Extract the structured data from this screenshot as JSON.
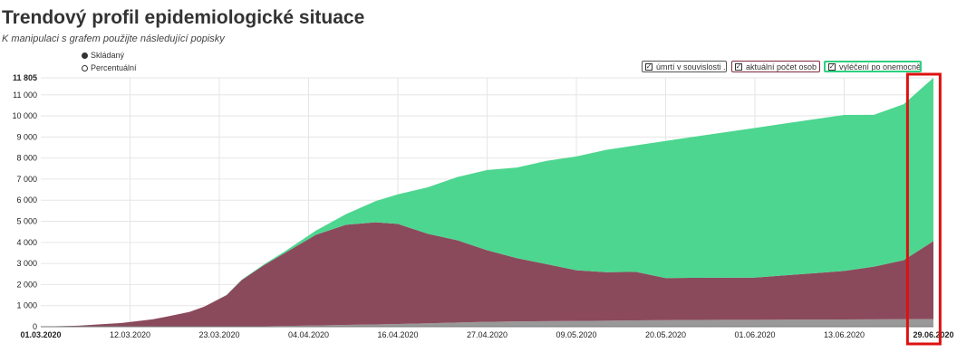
{
  "title": "Trendový profil epidemiologické situace",
  "subtitle": "K manipulaci s grafem použijte následující popisky",
  "mode_options": [
    {
      "label": "Skládaný",
      "selected": true
    },
    {
      "label": "Percentuální",
      "selected": false
    }
  ],
  "legend": [
    {
      "label": "úmrtí v souvislosti ...",
      "border_color": "#555555",
      "checked": true
    },
    {
      "label": "aktuální počet osob ...",
      "border_color": "#7f2a3c",
      "checked": true
    },
    {
      "label": "vyléčení po onemocně...",
      "border_color": "#2fcf7f",
      "checked": true
    }
  ],
  "chart_data": {
    "type": "area",
    "stacked": true,
    "x_labels": [
      "01.03.2020",
      "12.03.2020",
      "23.03.2020",
      "04.04.2020",
      "16.04.2020",
      "27.04.2020",
      "09.05.2020",
      "20.05.2020",
      "01.06.2020",
      "13.06.2020",
      "29.06.2020"
    ],
    "bold_x_labels": [
      "01.03.2020",
      "29.06.2020"
    ],
    "y_ticks": [
      0,
      1000,
      2000,
      3000,
      4000,
      5000,
      6000,
      7000,
      8000,
      9000,
      10000,
      11000
    ],
    "y_tick_labels": [
      "0",
      "1 000",
      "2 000",
      "3 000",
      "4 000",
      "5 000",
      "6 000",
      "7 000",
      "8 000",
      "9 000",
      "10 000",
      "11 000"
    ],
    "y_max_label": "11 805",
    "ylim": [
      0,
      11805
    ],
    "grid": true,
    "x_day_index": [
      0,
      5,
      11,
      15,
      17,
      20,
      22,
      25,
      27,
      30,
      33,
      37,
      41,
      45,
      48,
      52,
      56,
      60,
      64,
      68,
      72,
      76,
      80,
      84,
      88,
      92,
      96,
      100,
      104,
      108,
      112,
      116,
      120
    ],
    "series": [
      {
        "key": "deaths",
        "color": "#999999",
        "values": [
          0,
          0,
          0,
          0,
          1,
          2,
          3,
          5,
          9,
          20,
          35,
          60,
          85,
          105,
          130,
          160,
          200,
          230,
          250,
          265,
          275,
          285,
          300,
          310,
          320,
          325,
          330,
          335,
          340,
          345,
          350,
          355,
          360
        ]
      },
      {
        "key": "active",
        "color": "#8b4a5c",
        "values": [
          3,
          50,
          180,
          350,
          480,
          700,
          950,
          1500,
          2200,
          2900,
          3500,
          4300,
          4750,
          4850,
          4750,
          4250,
          3900,
          3400,
          3000,
          2700,
          2400,
          2300,
          2300,
          2000,
          2000,
          2000,
          2000,
          2100,
          2200,
          2300,
          2500,
          2800,
          3700
        ]
      },
      {
        "key": "recovered",
        "color": "#4dd68f",
        "values": [
          0,
          0,
          0,
          0,
          0,
          0,
          3,
          10,
          20,
          35,
          80,
          200,
          500,
          1000,
          1400,
          2200,
          3000,
          3800,
          4300,
          4900,
          5400,
          5800,
          6000,
          6500,
          6700,
          6900,
          7100,
          7200,
          7300,
          7400,
          7200,
          7400,
          7745
        ]
      }
    ]
  },
  "highlight": {
    "start_day": 117,
    "end_day": 122,
    "color": "#dd1111"
  }
}
